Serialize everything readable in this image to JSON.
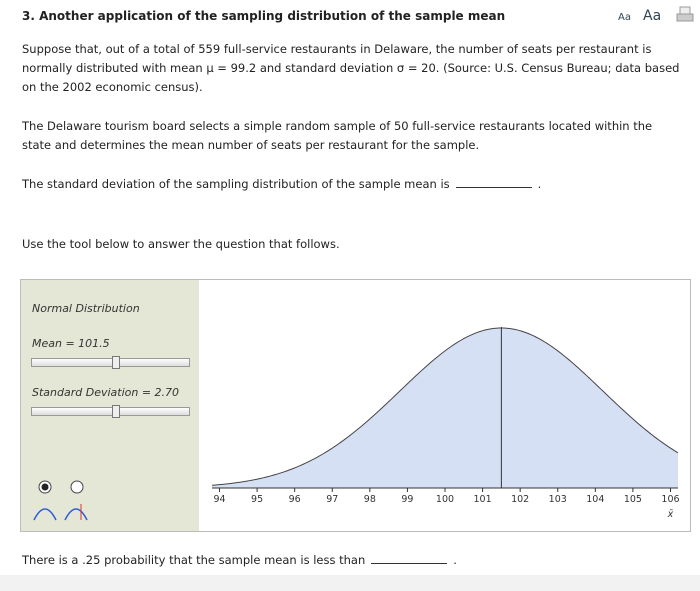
{
  "header": {
    "title": "3. Another application of the sampling distribution of the sample mean",
    "font_small": "Aa",
    "font_large": "Aa"
  },
  "paragraphs": [
    "Suppose that, out of a total of 559 full-service restaurants in Delaware, the number of seats per restaurant is normally distributed with mean μ = 99.2 and standard deviation σ = 20. (Source: U.S. Census Bureau; data based on the 2002 economic census).",
    "The Delaware tourism board selects a simple random sample of 50 full-service restaurants located within the state and determines the mean number of seats per restaurant for the sample."
  ],
  "question1": {
    "before": "The standard deviation of the sampling distribution of the sample mean is",
    "after": "."
  },
  "instruction": "Use the tool below to answer the question that follows.",
  "tool": {
    "title": "Normal Distribution",
    "mean": {
      "label": "Mean = 101.5",
      "value": 101.5
    },
    "sd": {
      "label": "Standard Deviation = 2.70",
      "value": 2.7
    },
    "chart": {
      "xlim": [
        93.8,
        106.2
      ],
      "xticks": [
        94,
        95,
        96,
        97,
        98,
        99,
        100,
        101,
        102,
        103,
        104,
        105,
        106
      ],
      "xlabel": "x̄",
      "color": "#d6e0f5"
    }
  },
  "question2": {
    "before": "There is a .25 probability that the sample mean is less than",
    "after": "."
  }
}
